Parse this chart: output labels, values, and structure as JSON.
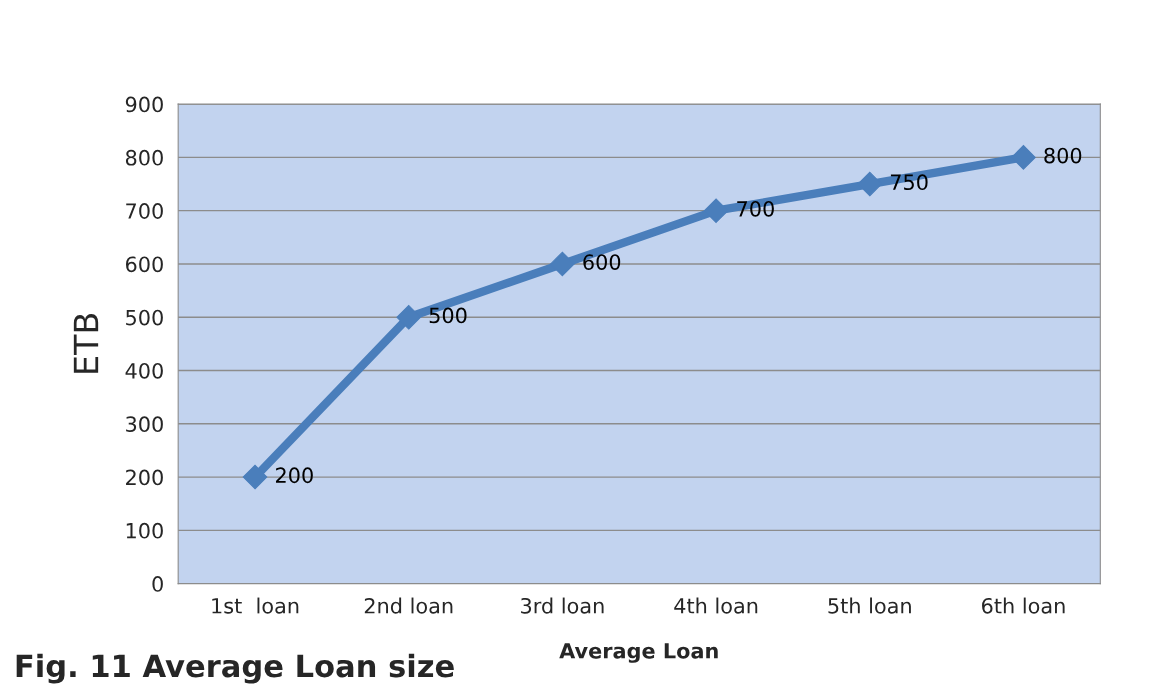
{
  "chart_data": {
    "type": "line",
    "categories": [
      "1st  loan",
      "2nd loan",
      "3rd loan",
      "4th loan",
      "5th loan",
      "6th loan"
    ],
    "series": [
      {
        "color": "#4a7ebb",
        "values": [
          200,
          500,
          600,
          700,
          750,
          800
        ]
      }
    ],
    "ylabel": "ETB",
    "xlabel": "Average Loan",
    "annotations": [
      "Fig. 11 Average Loan size"
    ],
    "ylim": [
      0,
      900
    ],
    "yticks": [
      0,
      100,
      200,
      300,
      400,
      500,
      600,
      700,
      800,
      900
    ],
    "grid": "y",
    "marker": "diamond",
    "line_style": "solid",
    "data_labels": true
  }
}
